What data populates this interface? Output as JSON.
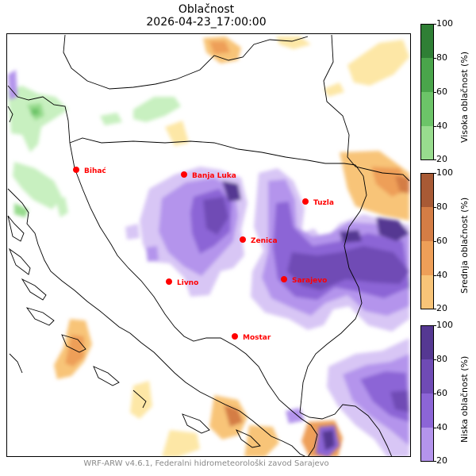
{
  "title": {
    "line1": "Oblačnost",
    "line2": "2026-04-23_17:00:00"
  },
  "footer": "WRF-ARW v4.6.1, Federalni hidrometeorološki zavod Sarajevo",
  "cities": [
    {
      "name": "Bihać"
    },
    {
      "name": "Banja Luka"
    },
    {
      "name": "Tuzla"
    },
    {
      "name": "Zenica"
    },
    {
      "name": "Livno"
    },
    {
      "name": "Sarajevo"
    },
    {
      "name": "Mostar"
    }
  ],
  "colorbars": [
    {
      "label": "Visoka oblačnost (%)",
      "ticks": [
        "20",
        "40",
        "60",
        "80",
        "100"
      ],
      "colors": [
        "#c8f0c0",
        "#98dc8e",
        "#6cc468",
        "#4aa54b",
        "#2f7f35"
      ]
    },
    {
      "label": "Srednja oblačnost (%)",
      "ticks": [
        "20",
        "40",
        "60",
        "80",
        "100"
      ],
      "colors": [
        "#fde7a6",
        "#f8c478",
        "#ee9f58",
        "#d47d45",
        "#a85a35"
      ]
    },
    {
      "label": "Niska oblačnost (%)",
      "ticks": [
        "20",
        "40",
        "60",
        "80",
        "100"
      ],
      "colors": [
        "#d8c6f5",
        "#b494ec",
        "#8c65d6",
        "#6f4bb5",
        "#553892"
      ]
    }
  ],
  "colors": {
    "city_marker": "#ff0000",
    "city_label": "#ff0000",
    "border": "#000000"
  }
}
